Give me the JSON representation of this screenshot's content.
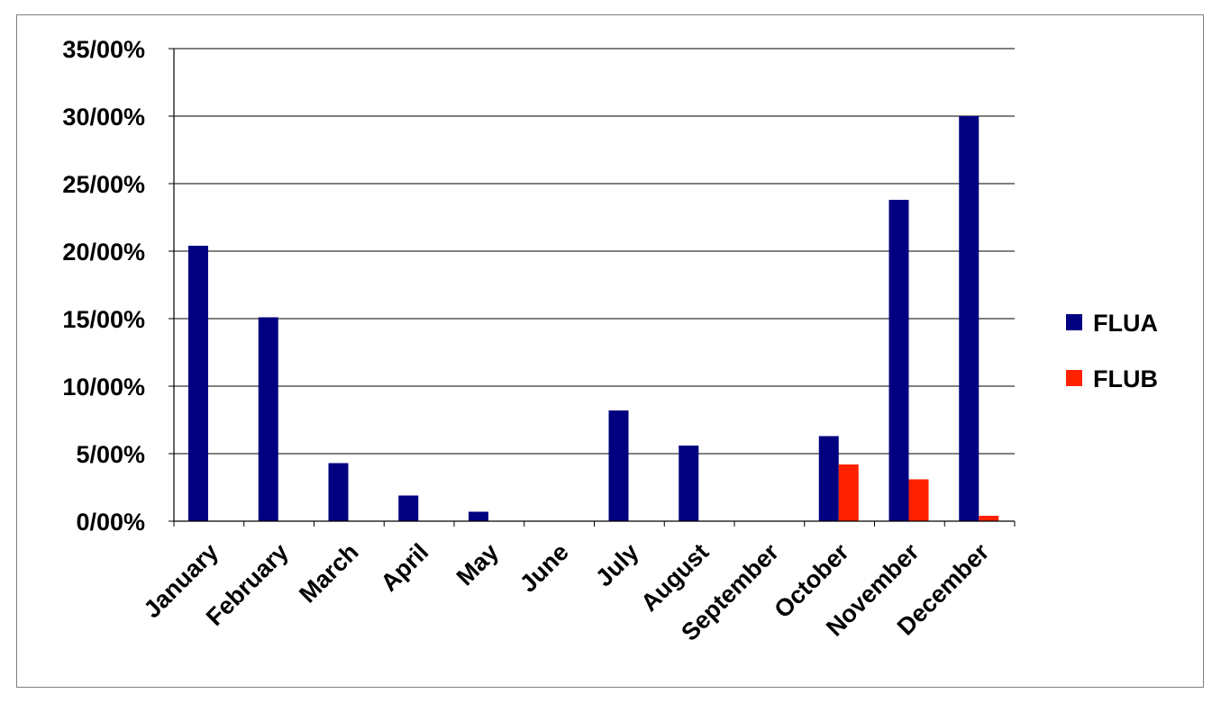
{
  "chart_data": {
    "type": "bar",
    "title": "",
    "xlabel": "",
    "ylabel": "",
    "categories": [
      "January",
      "February",
      "March",
      "April",
      "May",
      "June",
      "July",
      "August",
      "September",
      "October",
      "November",
      "December"
    ],
    "series": [
      {
        "name": "FLUA",
        "color": "#000080",
        "values": [
          20.4,
          15.1,
          4.3,
          1.9,
          0.7,
          0.0,
          8.2,
          5.6,
          0.0,
          6.3,
          23.8,
          30.0
        ]
      },
      {
        "name": "FLUB",
        "color": "#ff2200",
        "values": [
          0.0,
          0.0,
          0.0,
          0.0,
          0.0,
          0.0,
          0.0,
          0.0,
          0.0,
          4.2,
          3.1,
          0.4
        ]
      }
    ],
    "yticks": [
      0,
      5,
      10,
      15,
      20,
      25,
      30,
      35
    ],
    "ytick_labels": [
      "0/00%",
      "5/00%",
      "10/00%",
      "15/00%",
      "20/00%",
      "25/00%",
      "30/00%",
      "35/00%"
    ],
    "ylim": [
      0,
      35
    ],
    "grid": true,
    "legend_position": "right"
  }
}
